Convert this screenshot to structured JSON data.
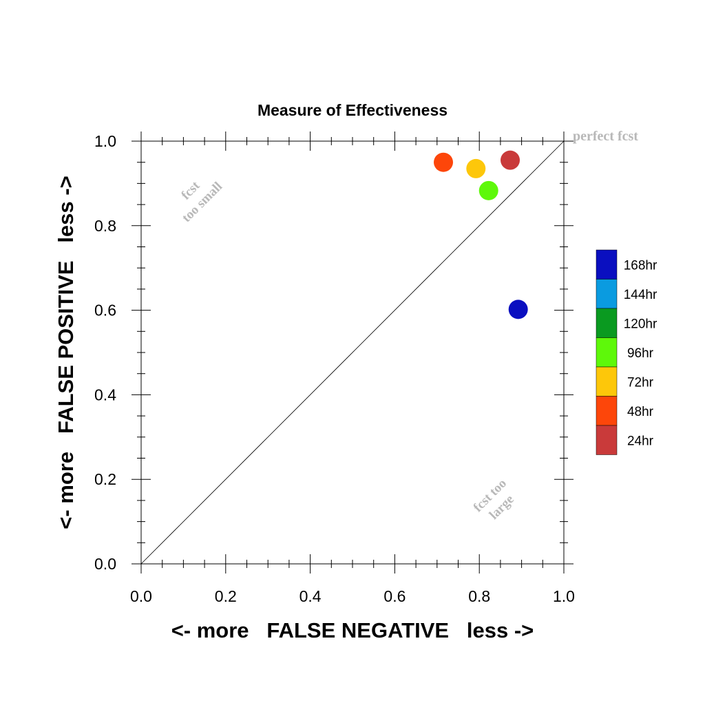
{
  "chart_data": {
    "type": "scatter",
    "title": "Measure of Effectiveness",
    "xlabel": "<- more   FALSE NEGATIVE   less ->",
    "ylabel": "<- more   FALSE POSITIVE   less ->",
    "xlim": [
      0,
      1
    ],
    "ylim": [
      0,
      1
    ],
    "x_ticks": [
      0.0,
      0.2,
      0.4,
      0.6,
      0.8,
      1.0
    ],
    "y_ticks": [
      0.0,
      0.2,
      0.4,
      0.6,
      0.8,
      1.0
    ],
    "x_tick_labels": [
      "0.0",
      "0.2",
      "0.4",
      "0.6",
      "0.8",
      "1.0"
    ],
    "y_tick_labels": [
      "0.0",
      "0.2",
      "0.4",
      "0.6",
      "0.8",
      "1.0"
    ],
    "grid": false,
    "diagonal_reference": true,
    "annotations": {
      "perfect": "perfect fcst",
      "too_small_line1": "fcst",
      "too_small_line2": "too small",
      "too_large_line1": "fcst too",
      "too_large_line2": "large"
    },
    "legend_position": "right",
    "legend": [
      {
        "label": "168hr",
        "color": "#0a0fc0"
      },
      {
        "label": "144hr",
        "color": "#0a9be0"
      },
      {
        "label": "120hr",
        "color": "#0a9a20"
      },
      {
        "label": "96hr",
        "color": "#5ef80a"
      },
      {
        "label": "72hr",
        "color": "#fdc70a"
      },
      {
        "label": "48hr",
        "color": "#fd460a"
      },
      {
        "label": "24hr",
        "color": "#c93a3a"
      }
    ],
    "points": [
      {
        "label": "24hr",
        "x": 0.873,
        "y": 0.955,
        "color": "#c93a3a"
      },
      {
        "label": "48hr",
        "x": 0.715,
        "y": 0.95,
        "color": "#fd460a"
      },
      {
        "label": "72hr",
        "x": 0.792,
        "y": 0.935,
        "color": "#fdc70a"
      },
      {
        "label": "96hr",
        "x": 0.822,
        "y": 0.883,
        "color": "#5ef80a"
      },
      {
        "label": "168hr",
        "x": 0.892,
        "y": 0.602,
        "color": "#0a0fc0"
      }
    ]
  }
}
